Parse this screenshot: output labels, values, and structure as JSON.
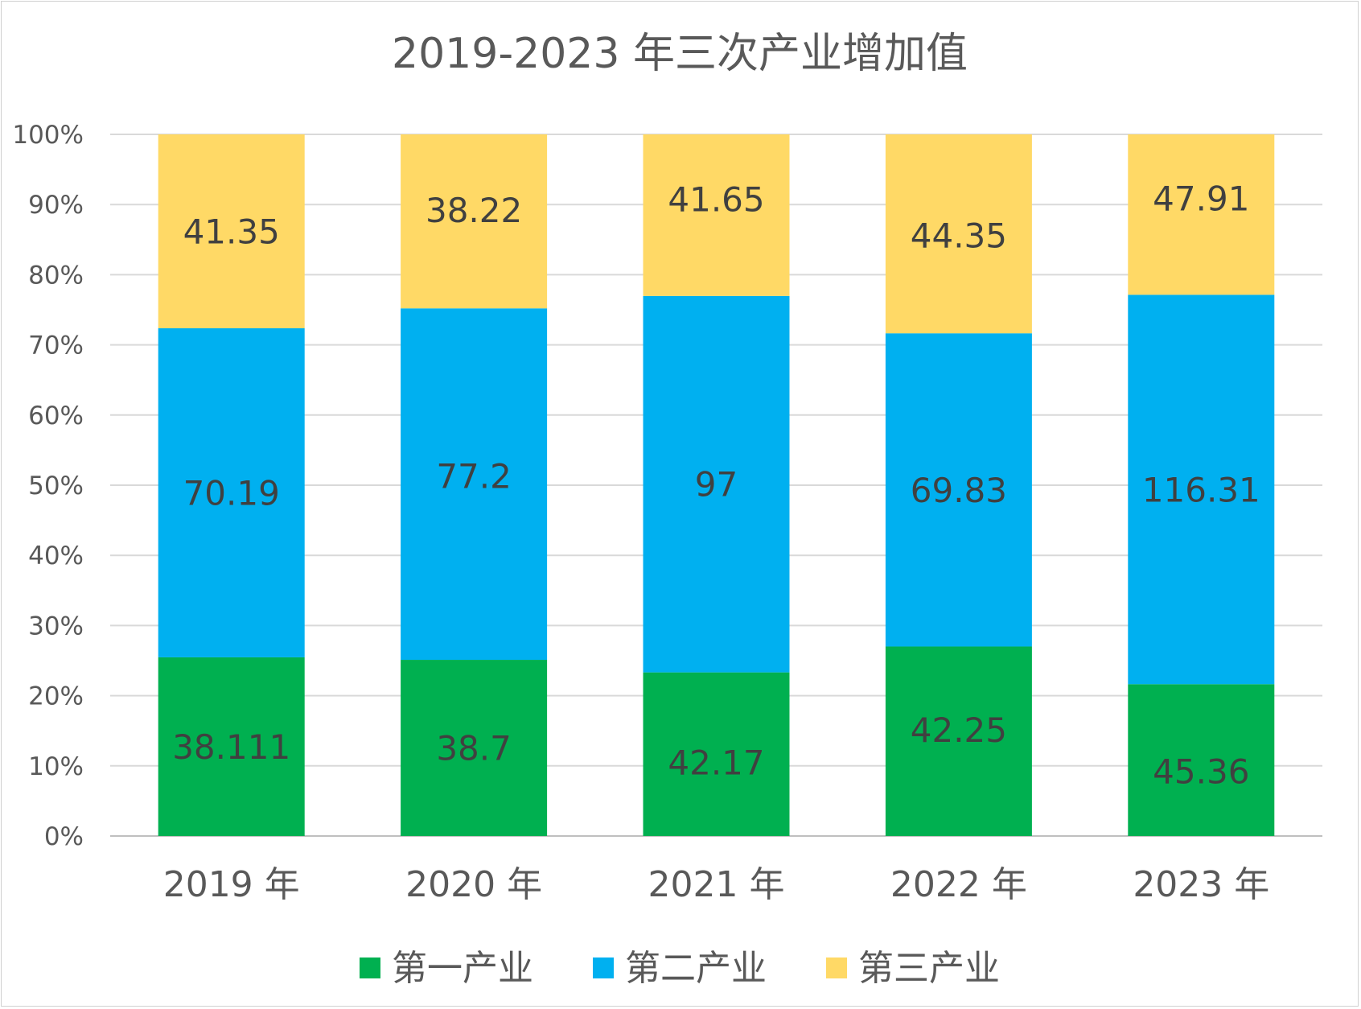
{
  "chart_data": {
    "type": "bar",
    "stacked": true,
    "normalized": true,
    "title": "2019-2023 年三次产业增加值",
    "categories": [
      "2019 年",
      "2020 年",
      "2021 年",
      "2022 年",
      "2023 年"
    ],
    "series": [
      {
        "name": "第一产业",
        "color": "#00b050",
        "values": [
          38.111,
          38.7,
          42.17,
          42.25,
          45.36
        ],
        "labels": [
          "38.111",
          "38.7",
          "42.17",
          "42.25",
          "45.36"
        ]
      },
      {
        "name": "第二产业",
        "color": "#00b0f0",
        "values": [
          70.19,
          77.2,
          97,
          69.83,
          116.31
        ],
        "labels": [
          "70.19",
          "77.2",
          "97",
          "69.83",
          "116.31"
        ]
      },
      {
        "name": "第三产业",
        "color": "#ffd966",
        "values": [
          41.35,
          38.22,
          41.65,
          44.35,
          47.91
        ],
        "labels": [
          "41.35",
          "38.22",
          "41.65",
          "44.35",
          "47.91"
        ]
      }
    ],
    "y_ticks": [
      "0%",
      "10%",
      "20%",
      "30%",
      "40%",
      "50%",
      "60%",
      "70%",
      "80%",
      "90%",
      "100%"
    ],
    "ylim": [
      0,
      100
    ],
    "grid": true,
    "legend_position": "bottom"
  }
}
